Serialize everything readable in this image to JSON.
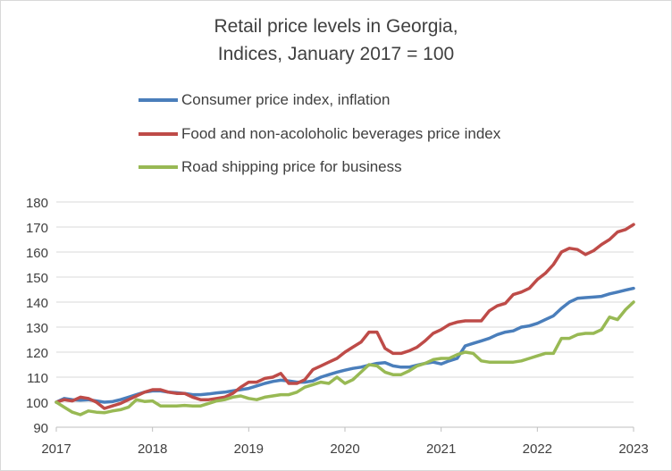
{
  "chart_data": {
    "type": "line",
    "title": "Retail price levels in Georgia,",
    "subtitle": "Indices, January 2017 = 100",
    "xlabel": "",
    "ylabel": "",
    "xlim": [
      2017,
      2023
    ],
    "ylim": [
      90,
      180
    ],
    "x_ticks": [
      "2017",
      "2018",
      "2019",
      "2020",
      "2021",
      "2022",
      "2023"
    ],
    "y_ticks": [
      "90",
      "100",
      "110",
      "120",
      "130",
      "140",
      "150",
      "160",
      "170",
      "180"
    ],
    "grid": "horizontal",
    "legend_position": "top",
    "series": [
      {
        "name": "Consumer price index, inflation",
        "color": "#4a7ebb",
        "x": [
          2017.0,
          2017.083,
          2017.167,
          2017.25,
          2017.333,
          2017.417,
          2017.5,
          2017.583,
          2017.667,
          2017.75,
          2017.833,
          2017.917,
          2018.0,
          2018.083,
          2018.167,
          2018.25,
          2018.333,
          2018.417,
          2018.5,
          2018.583,
          2018.667,
          2018.75,
          2018.833,
          2018.917,
          2019.0,
          2019.083,
          2019.167,
          2019.25,
          2019.333,
          2019.417,
          2019.5,
          2019.583,
          2019.667,
          2019.75,
          2019.833,
          2019.917,
          2020.0,
          2020.083,
          2020.167,
          2020.25,
          2020.333,
          2020.417,
          2020.5,
          2020.583,
          2020.667,
          2020.75,
          2020.833,
          2020.917,
          2021.0,
          2021.083,
          2021.167,
          2021.25,
          2021.333,
          2021.417,
          2021.5,
          2021.583,
          2021.667,
          2021.75,
          2021.833,
          2021.917,
          2022.0,
          2022.083,
          2022.167,
          2022.25,
          2022.333,
          2022.417,
          2022.5,
          2022.583,
          2022.667,
          2022.75,
          2022.833,
          2022.917,
          2023.0
        ],
        "values": [
          100,
          101.5,
          101,
          100.8,
          101,
          100.5,
          100,
          100.2,
          101,
          102,
          103,
          104,
          104.5,
          104.5,
          104,
          103.8,
          103.5,
          103,
          103,
          103.3,
          103.7,
          104,
          104.5,
          105,
          105.5,
          106.5,
          107.5,
          108.3,
          108.8,
          108.5,
          108,
          108,
          108.5,
          110,
          111,
          112,
          112.8,
          113.5,
          114,
          114.8,
          115.5,
          115.8,
          114.5,
          114,
          114,
          114.8,
          115.5,
          116,
          115.3,
          116.5,
          117.5,
          122.5,
          123.5,
          124.5,
          125.5,
          127,
          128,
          128.5,
          130,
          130.5,
          131.5,
          133,
          134.5,
          137.5,
          140,
          141.5,
          141.8,
          142,
          142.3,
          143.3,
          144,
          144.8,
          145.5
        ]
      },
      {
        "name": "Food and non-acoloholic beverages price index",
        "color": "#be4b48",
        "x": [
          2017.0,
          2017.083,
          2017.167,
          2017.25,
          2017.333,
          2017.417,
          2017.5,
          2017.583,
          2017.667,
          2017.75,
          2017.833,
          2017.917,
          2018.0,
          2018.083,
          2018.167,
          2018.25,
          2018.333,
          2018.417,
          2018.5,
          2018.583,
          2018.667,
          2018.75,
          2018.833,
          2018.917,
          2019.0,
          2019.083,
          2019.167,
          2019.25,
          2019.333,
          2019.417,
          2019.5,
          2019.583,
          2019.667,
          2019.75,
          2019.833,
          2019.917,
          2020.0,
          2020.083,
          2020.167,
          2020.25,
          2020.333,
          2020.417,
          2020.5,
          2020.583,
          2020.667,
          2020.75,
          2020.833,
          2020.917,
          2021.0,
          2021.083,
          2021.167,
          2021.25,
          2021.333,
          2021.417,
          2021.5,
          2021.583,
          2021.667,
          2021.75,
          2021.833,
          2021.917,
          2022.0,
          2022.083,
          2022.167,
          2022.25,
          2022.333,
          2022.417,
          2022.5,
          2022.583,
          2022.667,
          2022.75,
          2022.833,
          2022.917,
          2023.0
        ],
        "values": [
          100,
          101,
          100.5,
          102,
          101.5,
          100,
          97.5,
          98.5,
          99.5,
          101,
          102.5,
          104,
          105,
          105,
          104,
          103.5,
          103.5,
          102,
          101,
          101,
          101.5,
          102,
          103.5,
          106,
          108,
          108,
          109.5,
          110,
          111.5,
          107.5,
          107.5,
          109,
          113,
          114.5,
          116,
          117.5,
          120,
          122,
          124,
          128,
          128,
          121.5,
          119.5,
          119.5,
          120.5,
          122,
          124.5,
          127.5,
          129,
          131,
          132,
          132.5,
          132.5,
          132.5,
          136.5,
          138.5,
          139.5,
          143,
          144,
          145.5,
          149,
          151.5,
          155,
          160,
          161.5,
          161,
          159,
          160.5,
          163,
          165,
          168,
          169,
          171
        ]
      },
      {
        "name": "Road shipping price for business",
        "color": "#98b954",
        "x": [
          2017.0,
          2017.083,
          2017.167,
          2017.25,
          2017.333,
          2017.417,
          2017.5,
          2017.583,
          2017.667,
          2017.75,
          2017.833,
          2017.917,
          2018.0,
          2018.083,
          2018.167,
          2018.25,
          2018.333,
          2018.417,
          2018.5,
          2018.583,
          2018.667,
          2018.75,
          2018.833,
          2018.917,
          2019.0,
          2019.083,
          2019.167,
          2019.25,
          2019.333,
          2019.417,
          2019.5,
          2019.583,
          2019.667,
          2019.75,
          2019.833,
          2019.917,
          2020.0,
          2020.083,
          2020.167,
          2020.25,
          2020.333,
          2020.417,
          2020.5,
          2020.583,
          2020.667,
          2020.75,
          2020.833,
          2020.917,
          2021.0,
          2021.083,
          2021.167,
          2021.25,
          2021.333,
          2021.417,
          2021.5,
          2021.583,
          2021.667,
          2021.75,
          2021.833,
          2021.917,
          2022.0,
          2022.083,
          2022.167,
          2022.25,
          2022.333,
          2022.417,
          2022.5,
          2022.583,
          2022.667,
          2022.75,
          2022.833,
          2022.917,
          2023.0
        ],
        "values": [
          100,
          98,
          96,
          95,
          96.5,
          96,
          95.8,
          96.5,
          97,
          98,
          101,
          100.3,
          100.5,
          98.5,
          98.5,
          98.5,
          98.7,
          98.5,
          98.5,
          99.5,
          100.5,
          101,
          102,
          102.5,
          101.5,
          101,
          102,
          102.5,
          103,
          103,
          104,
          106,
          107,
          108,
          107.5,
          110,
          107.5,
          109,
          112,
          115,
          114.5,
          112,
          111,
          111,
          112.5,
          114.5,
          115.5,
          117,
          117.5,
          117.5,
          119,
          120,
          119.5,
          116.5,
          116,
          116,
          116,
          116,
          116.5,
          117.5,
          118.5,
          119.5,
          119.5,
          125.5,
          125.5,
          127,
          127.5,
          127.5,
          129,
          134,
          133,
          137,
          140
        ]
      }
    ]
  }
}
